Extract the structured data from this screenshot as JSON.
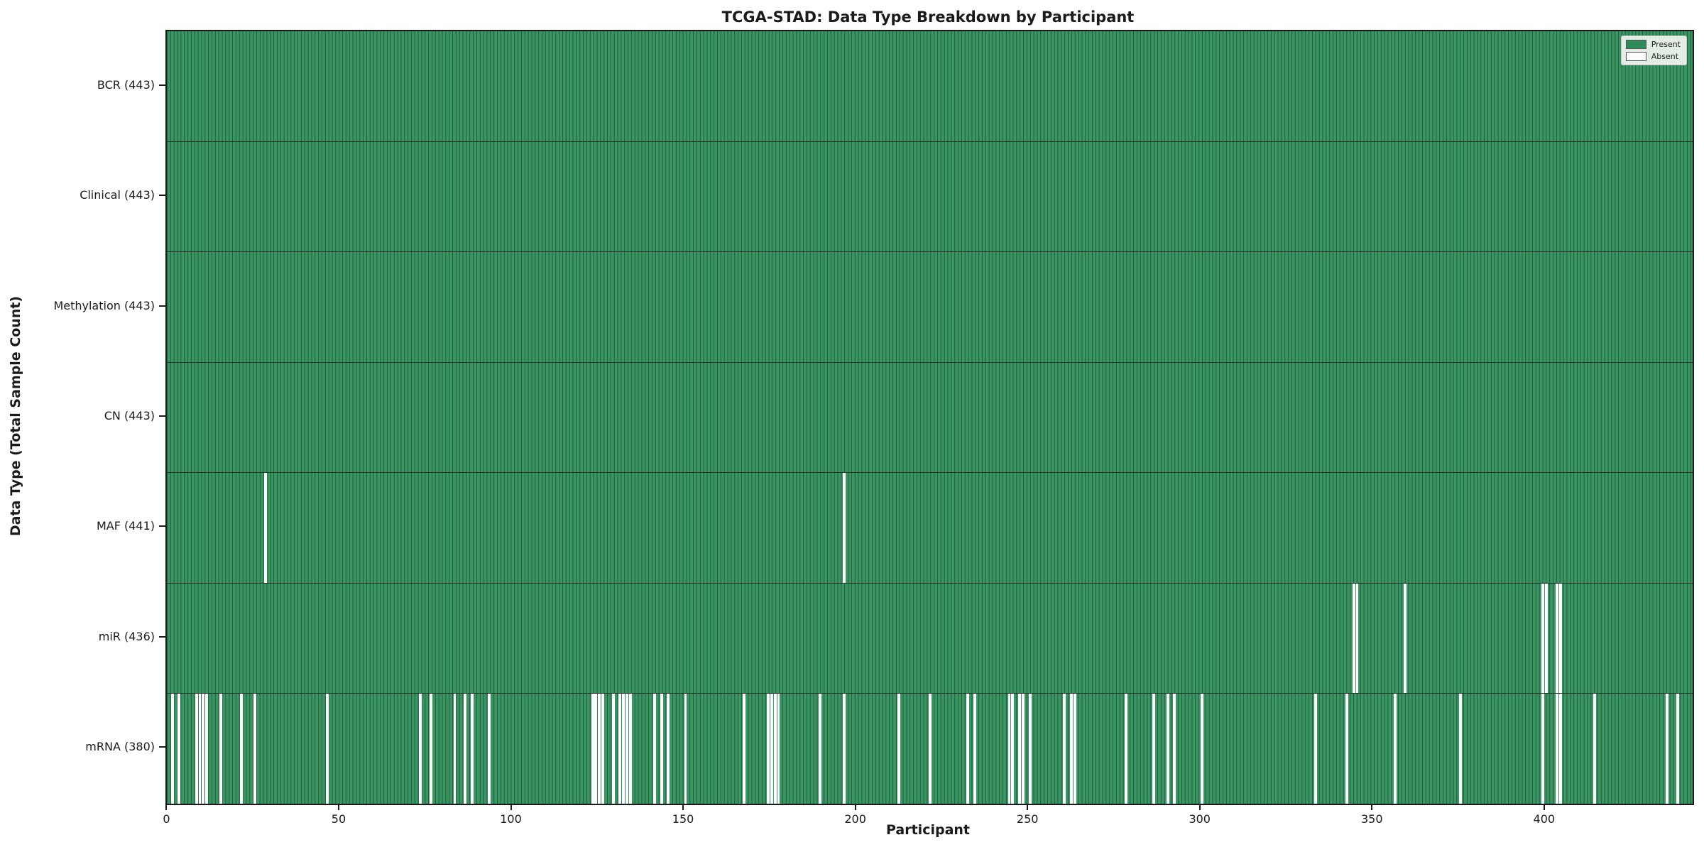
{
  "colors": {
    "present_fill": "#389662",
    "present_edge": "#27593b",
    "absent": "#ffffff",
    "separator": "#2f2f2f",
    "plot_border": "#1b1b1b",
    "legend_present_swatch": "#2e8b57",
    "legend_absent_swatch": "#ffffff"
  },
  "chart_data": {
    "type": "heatmap",
    "title": "TCGA-STAD: Data Type Breakdown by Participant",
    "xlabel": "Participant",
    "ylabel": "Data Type (Total Sample Count)",
    "x_range": [
      0,
      443
    ],
    "x_ticks": [
      0,
      50,
      100,
      150,
      200,
      250,
      300,
      350,
      400
    ],
    "grid": false,
    "legend_position": "upper right",
    "legend": [
      {
        "label": "Present"
      },
      {
        "label": "Absent"
      }
    ],
    "cell_values": {
      "present": 1,
      "absent": 0
    },
    "rows": [
      {
        "label": "BCR (443)",
        "name": "BCR",
        "total": 443,
        "absent_participants": []
      },
      {
        "label": "Clinical (443)",
        "name": "Clinical",
        "total": 443,
        "absent_participants": []
      },
      {
        "label": "Methylation (443)",
        "name": "Methylation",
        "total": 443,
        "absent_participants": []
      },
      {
        "label": "CN (443)",
        "name": "CN",
        "total": 443,
        "absent_participants": []
      },
      {
        "label": "MAF (441)",
        "name": "MAF",
        "total": 441,
        "absent_participants": [
          28,
          196
        ]
      },
      {
        "label": "miR (436)",
        "name": "miR",
        "total": 436,
        "absent_participants": [
          344,
          345,
          359,
          399,
          400,
          403,
          404
        ]
      },
      {
        "label": "mRNA (380)",
        "name": "mRNA",
        "total": 380,
        "absent_participants": [
          1,
          3,
          8,
          9,
          10,
          11,
          15,
          21,
          25,
          46,
          73,
          76,
          83,
          86,
          88,
          93,
          123,
          124,
          125,
          126,
          129,
          131,
          132,
          133,
          134,
          141,
          143,
          145,
          150,
          167,
          174,
          175,
          176,
          177,
          189,
          196,
          212,
          221,
          232,
          234,
          244,
          245,
          247,
          248,
          250,
          260,
          262,
          263,
          278,
          286,
          290,
          292,
          300,
          333,
          342,
          356,
          375,
          399,
          403,
          404,
          414,
          435,
          438
        ]
      }
    ]
  }
}
